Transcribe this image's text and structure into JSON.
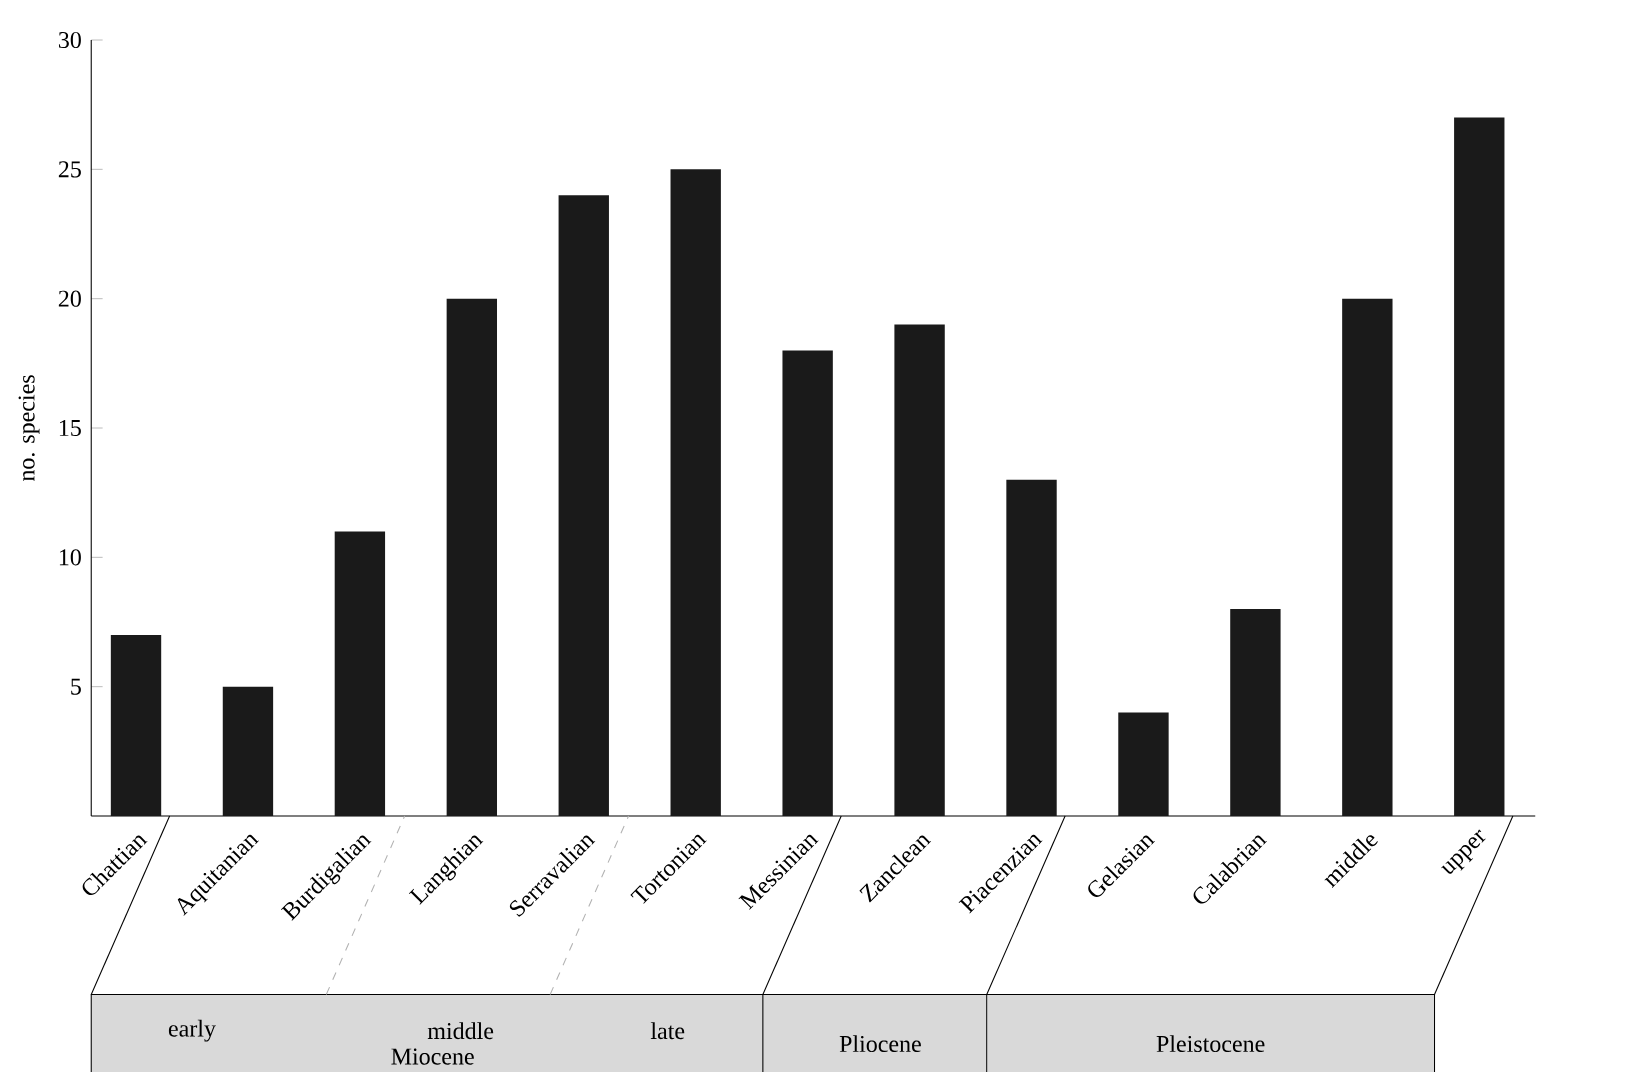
{
  "chart_data": {
    "type": "bar",
    "ylabel": "no. species",
    "categories": [
      "Chattian",
      "Aquitanian",
      "Burdigalian",
      "Langhian",
      "Serravalian",
      "Tortonian",
      "Messinian",
      "Zanclean",
      "Piacenzian",
      "Gelasian",
      "Calabrian",
      "middle",
      "upper"
    ],
    "values": [
      7,
      5,
      11,
      20,
      24,
      25,
      18,
      19,
      13,
      4,
      8,
      20,
      27
    ],
    "color": "#1a1a1a",
    "ylim": [
      0,
      30
    ],
    "yticks": [
      5,
      10,
      15,
      20,
      25,
      30
    ],
    "annotations": [
      "early",
      "middle",
      "late",
      "Miocene",
      "Pliocene",
      "Pleistocene"
    ]
  }
}
